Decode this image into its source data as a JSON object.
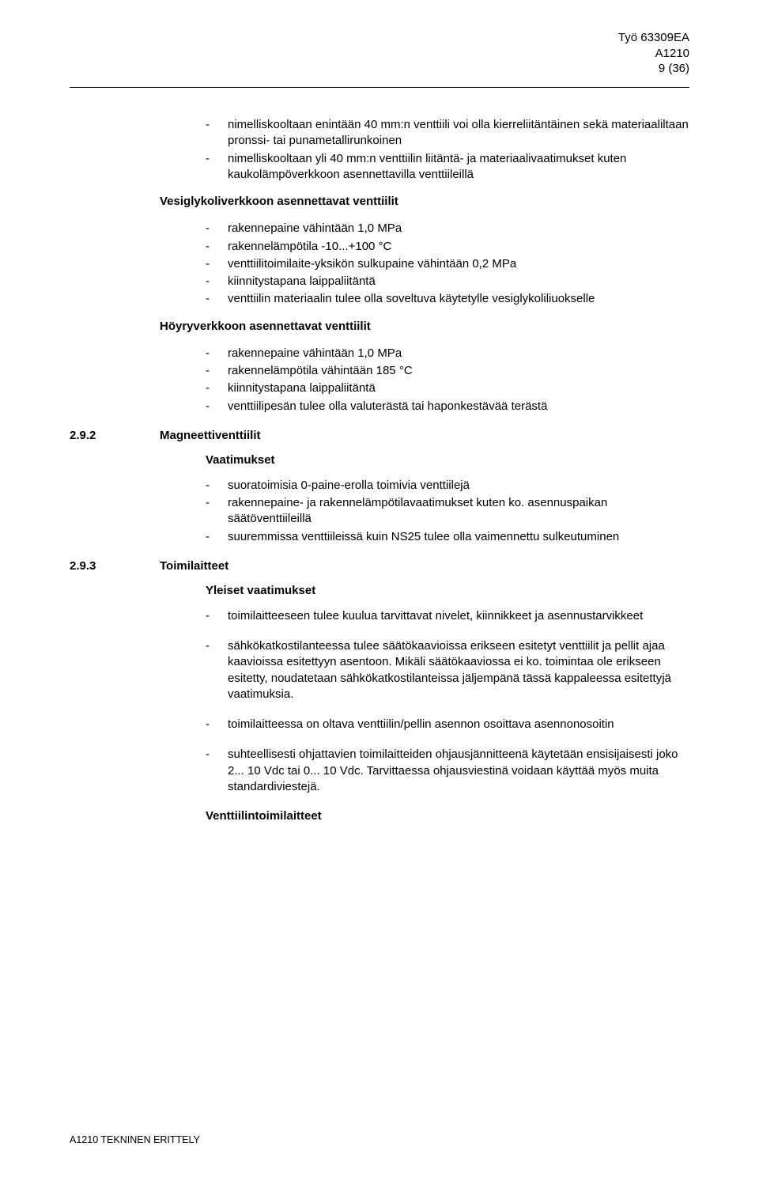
{
  "header": {
    "work": "Työ 63309EA",
    "code": "A1210",
    "page": "9 (36)"
  },
  "intro_list": [
    "nimelliskooltaan enintään 40 mm:n venttiili voi olla kierreliitäntäinen sekä materiaaliltaan pronssi- tai punametallirunkoinen",
    "nimelliskooltaan yli 40 mm:n venttiilin liitäntä- ja materiaalivaatimukset kuten kaukolämpöverkkoon asennettavilla venttiileillä"
  ],
  "h_vesi": "Vesiglykoliverkkoon asennettavat venttiilit",
  "vesi_list": [
    "rakennepaine vähintään 1,0 MPa",
    "rakennelämpötila -10...+100 °C",
    "venttiilitoimilaite-yksikön sulkupaine vähintään 0,2 MPa",
    "kiinnitystapana laippaliitäntä",
    "venttiilin materiaalin tulee olla soveltuva käytetylle vesiglykoliliuokselle"
  ],
  "h_hoyry": "Höyryverkkoon asennettavat venttiilit",
  "hoyry_list": [
    "rakennepaine vähintään 1,0 MPa",
    "rakennelämpötila vähintään 185 °C",
    "kiinnitystapana laippaliitäntä",
    "venttiilipesän tulee olla valuterästä tai haponkestävää terästä"
  ],
  "sec292": {
    "num": "2.9.2",
    "title": "Magneettiventtiilit"
  },
  "h_vaat": "Vaatimukset",
  "vaat_list": [
    "suoratoimisia 0-paine-erolla toimivia venttiilejä",
    "rakennepaine- ja rakennelämpötilavaatimukset kuten ko. asennuspaikan säätöventtiileillä",
    "suuremmissa venttiileissä kuin NS25 tulee olla vaimennettu sulkeutuminen"
  ],
  "sec293": {
    "num": "2.9.3",
    "title": "Toimilaitteet"
  },
  "h_yleiset": "Yleiset vaatimukset",
  "yleiset": {
    "p1": "toimilaitteeseen tulee kuulua tarvittavat nivelet, kiinnikkeet ja asennustarvikkeet",
    "p2": "sähkökatkostilanteessa tulee säätökaavioissa erikseen esitetyt venttiilit ja pellit ajaa kaavioissa esitettyyn asentoon. Mikäli säätökaaviossa ei ko. toimintaa ole erikseen esitetty, noudatetaan sähkökatkostilanteissa jäljempänä tässä kappaleessa esitettyjä vaatimuksia.",
    "p3": "toimilaitteessa on oltava venttiilin/pellin asennon osoittava asennonosoitin",
    "p4": "suhteellisesti ohjattavien toimilaitteiden ohjausjännitteenä käytetään ensisijaisesti joko 2... 10 Vdc tai 0... 10 Vdc. Tarvittaessa ohjausviestinä voidaan käyttää myös muita standardiviestejä."
  },
  "h_vtl": "Venttiilintoimilaitteet",
  "footer": "A1210 TEKNINEN ERITTELY"
}
